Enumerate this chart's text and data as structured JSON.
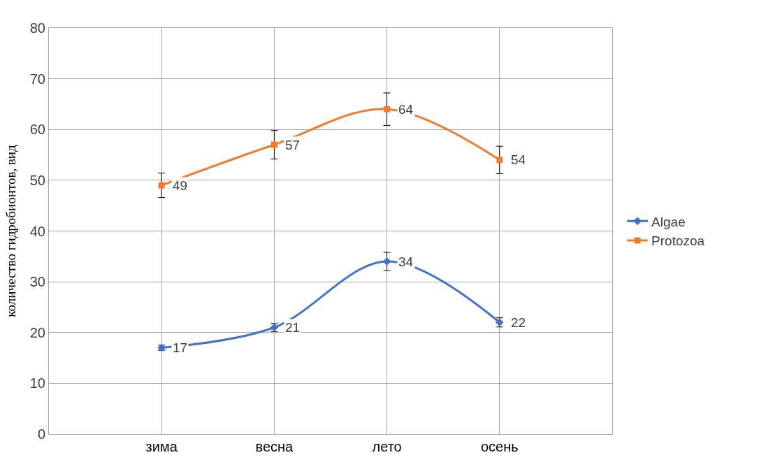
{
  "chart_data": {
    "type": "line",
    "ylabel": "количество гидробионтов, вид",
    "categories": [
      "зима",
      "весна",
      "лето",
      "осень"
    ],
    "series": [
      {
        "name": "Algae",
        "color": "#4472c4",
        "marker": "diamond",
        "values": [
          17,
          21,
          34,
          22
        ],
        "errors": [
          0.5,
          0.8,
          1.8,
          0.9
        ]
      },
      {
        "name": "Protozoa",
        "color": "#ed7d31",
        "marker": "square",
        "values": [
          49,
          57,
          64,
          54
        ],
        "errors": [
          2.4,
          2.8,
          3.2,
          2.7
        ]
      }
    ],
    "ylim": [
      0,
      80
    ],
    "yticks": [
      0,
      10,
      20,
      30,
      40,
      50,
      60,
      70,
      80
    ],
    "grid": true,
    "legend": "right",
    "data_labels": true,
    "line_style": "solid"
  }
}
